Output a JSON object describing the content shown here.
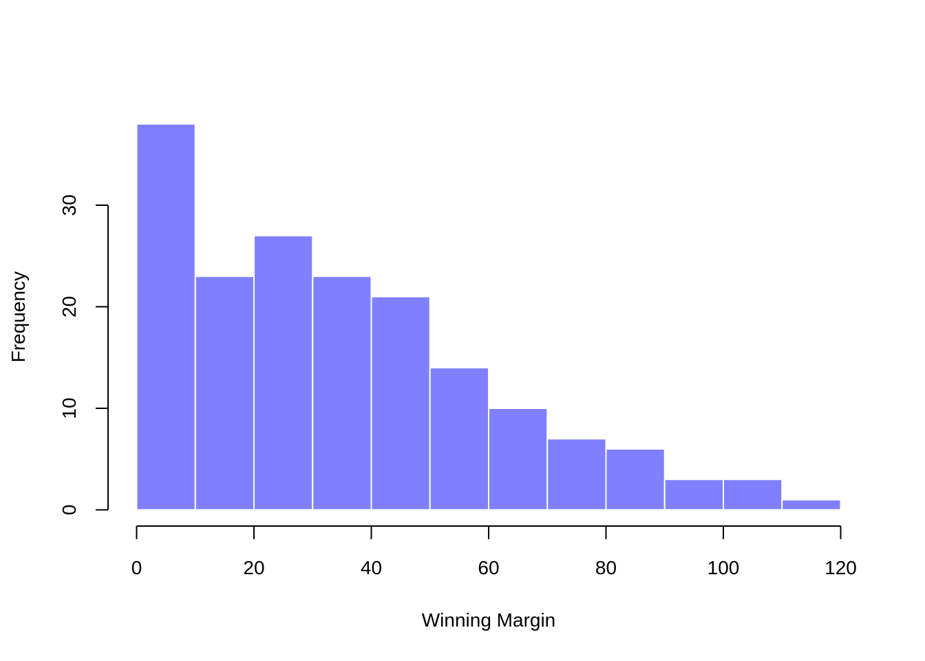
{
  "chart_data": {
    "type": "bar",
    "title": "",
    "xlabel": "Winning Margin",
    "ylabel": "Frequency",
    "bins": [
      {
        "from": 0,
        "to": 10,
        "count": 38
      },
      {
        "from": 10,
        "to": 20,
        "count": 23
      },
      {
        "from": 20,
        "to": 30,
        "count": 27
      },
      {
        "from": 30,
        "to": 40,
        "count": 23
      },
      {
        "from": 40,
        "to": 50,
        "count": 21
      },
      {
        "from": 50,
        "to": 60,
        "count": 14
      },
      {
        "from": 60,
        "to": 70,
        "count": 10
      },
      {
        "from": 70,
        "to": 80,
        "count": 7
      },
      {
        "from": 80,
        "to": 90,
        "count": 6
      },
      {
        "from": 90,
        "to": 100,
        "count": 3
      },
      {
        "from": 100,
        "to": 110,
        "count": 3
      },
      {
        "from": 110,
        "to": 120,
        "count": 1
      }
    ],
    "xlim": [
      0,
      120
    ],
    "ylim": [
      0,
      38
    ],
    "x_ticks": [
      0,
      20,
      40,
      60,
      80,
      100,
      120
    ],
    "y_ticks": [
      0,
      10,
      20,
      30
    ],
    "bar_color": "#8080FF",
    "bar_border_color": "#FFFFFF",
    "grid": false,
    "legend": "none"
  }
}
